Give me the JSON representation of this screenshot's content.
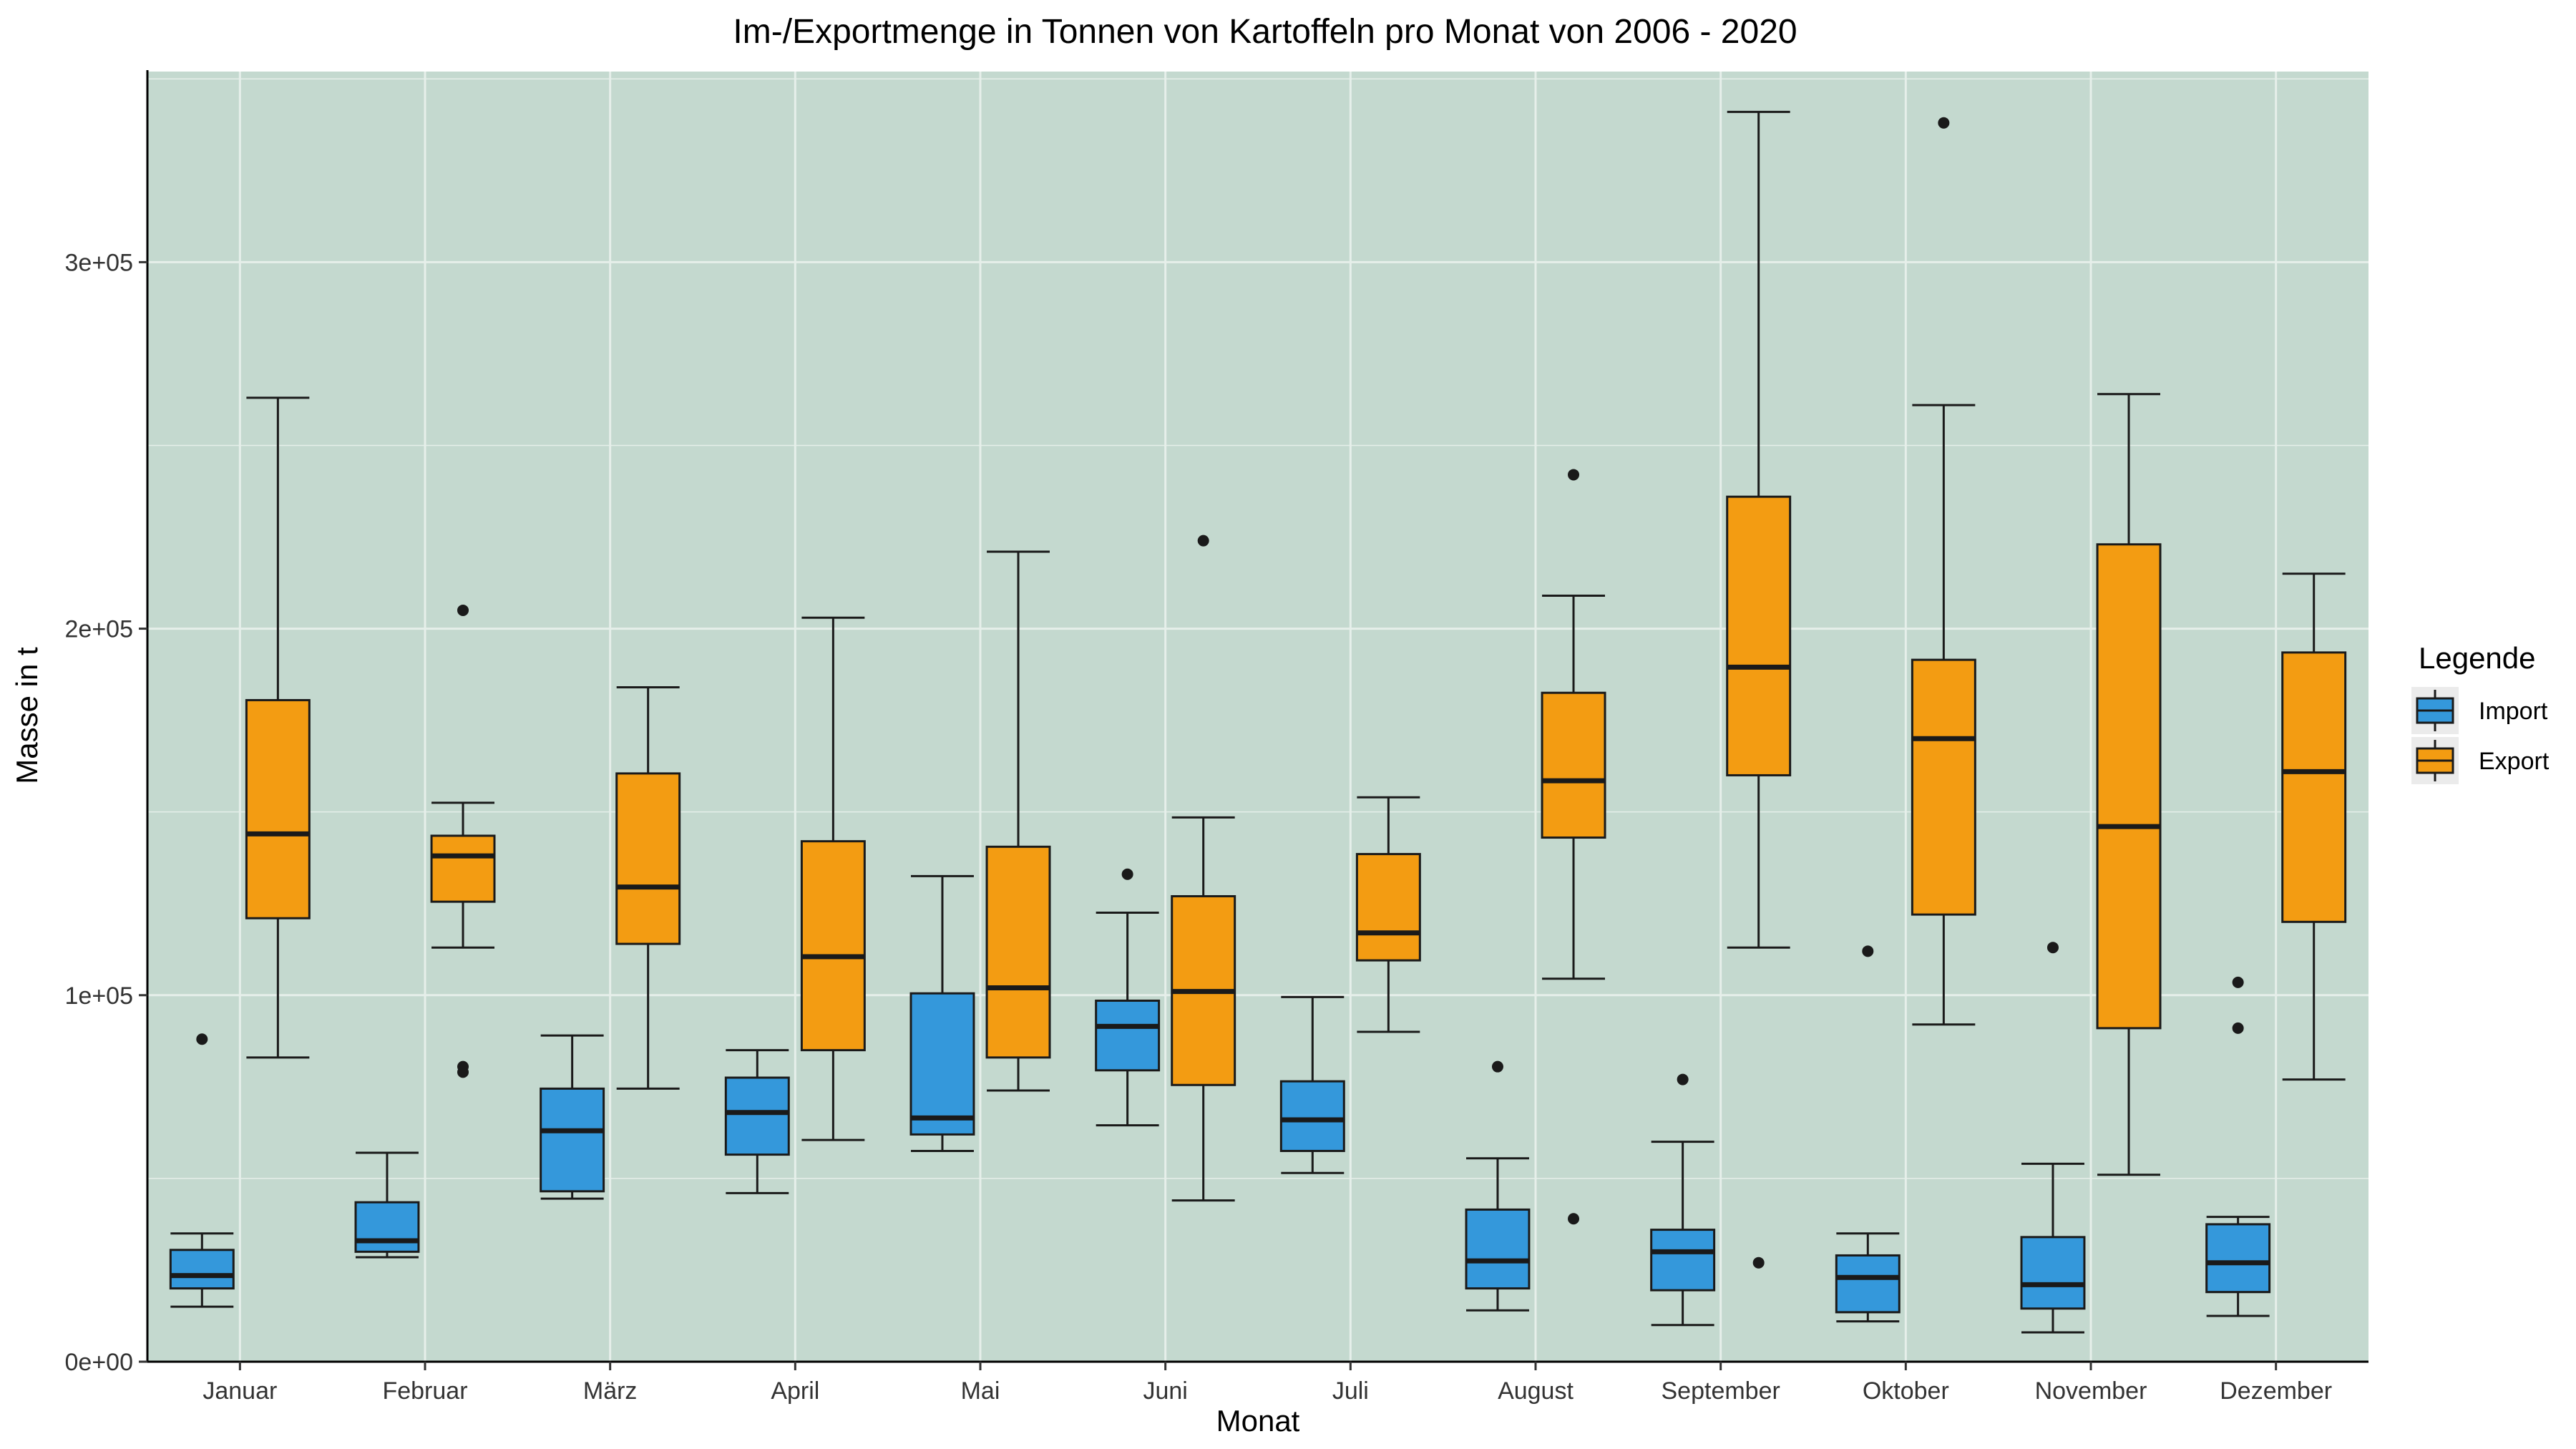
{
  "colors": {
    "panel": "#c4d9cf",
    "grid": "#e6efea",
    "import": "#3498db",
    "export": "#f39c12",
    "outline": "#1a1a1a",
    "text": "#000000",
    "tick_text": "#333333",
    "legend_key_bg": "#ebebeb"
  },
  "chart_data": {
    "type": "box",
    "title": "Im-/Exportmenge in Tonnen von Kartoffeln pro Monat von 2006 - 2020",
    "xlabel": "Monat",
    "ylabel": "Masse in t",
    "ylim": [
      0,
      352000
    ],
    "yticks": [
      0,
      100000,
      200000,
      300000
    ],
    "ytick_labels": [
      "0e+00",
      "1e+05",
      "2e+05",
      "3e+05"
    ],
    "grid": true,
    "legend": {
      "title": "Legende",
      "position": "right",
      "entries": [
        "Import",
        "Export"
      ]
    },
    "categories": [
      "Januar",
      "Februar",
      "März",
      "April",
      "Mai",
      "Juni",
      "Juli",
      "August",
      "September",
      "Oktober",
      "November",
      "Dezember"
    ],
    "series": [
      {
        "name": "Import",
        "boxes": [
          {
            "whisker_low": 15000,
            "q1": 20000,
            "median": 23500,
            "q3": 30500,
            "whisker_high": 35000,
            "outliers": [
              88000
            ]
          },
          {
            "whisker_low": 28500,
            "q1": 30000,
            "median": 33000,
            "q3": 43500,
            "whisker_high": 57000,
            "outliers": []
          },
          {
            "whisker_low": 44500,
            "q1": 46500,
            "median": 63000,
            "q3": 74500,
            "whisker_high": 89000,
            "outliers": []
          },
          {
            "whisker_low": 46000,
            "q1": 56500,
            "median": 68000,
            "q3": 77500,
            "whisker_high": 85000,
            "outliers": []
          },
          {
            "whisker_low": 57500,
            "q1": 62000,
            "median": 66500,
            "q3": 100500,
            "whisker_high": 132500,
            "outliers": []
          },
          {
            "whisker_low": 64500,
            "q1": 79500,
            "median": 91500,
            "q3": 98500,
            "whisker_high": 122500,
            "outliers": [
              133000
            ]
          },
          {
            "whisker_low": 51500,
            "q1": 57500,
            "median": 66000,
            "q3": 76500,
            "whisker_high": 99500,
            "outliers": []
          },
          {
            "whisker_low": 14000,
            "q1": 20000,
            "median": 27500,
            "q3": 41500,
            "whisker_high": 55500,
            "outliers": [
              80500
            ]
          },
          {
            "whisker_low": 10000,
            "q1": 19500,
            "median": 30000,
            "q3": 36000,
            "whisker_high": 60000,
            "outliers": [
              77000
            ]
          },
          {
            "whisker_low": 11000,
            "q1": 13500,
            "median": 23000,
            "q3": 29000,
            "whisker_high": 35000,
            "outliers": [
              112000
            ]
          },
          {
            "whisker_low": 8000,
            "q1": 14500,
            "median": 21000,
            "q3": 34000,
            "whisker_high": 54000,
            "outliers": [
              113000
            ]
          },
          {
            "whisker_low": 12500,
            "q1": 19000,
            "median": 27000,
            "q3": 37500,
            "whisker_high": 39500,
            "outliers": [
              91000,
              103500
            ]
          }
        ]
      },
      {
        "name": "Export",
        "boxes": [
          {
            "whisker_low": 83000,
            "q1": 121000,
            "median": 144000,
            "q3": 180500,
            "whisker_high": 263000,
            "outliers": []
          },
          {
            "whisker_low": 113000,
            "q1": 125500,
            "median": 138000,
            "q3": 143500,
            "whisker_high": 152500,
            "outliers": [
              79000,
              80500,
              205000
            ]
          },
          {
            "whisker_low": 74500,
            "q1": 114000,
            "median": 129500,
            "q3": 160500,
            "whisker_high": 184000,
            "outliers": []
          },
          {
            "whisker_low": 60500,
            "q1": 85000,
            "median": 110500,
            "q3": 142000,
            "whisker_high": 203000,
            "outliers": []
          },
          {
            "whisker_low": 74000,
            "q1": 83000,
            "median": 102000,
            "q3": 140500,
            "whisker_high": 221000,
            "outliers": []
          },
          {
            "whisker_low": 44000,
            "q1": 75500,
            "median": 101000,
            "q3": 127000,
            "whisker_high": 148500,
            "outliers": [
              224000
            ]
          },
          {
            "whisker_low": 90000,
            "q1": 109500,
            "median": 117000,
            "q3": 138500,
            "whisker_high": 154000,
            "outliers": []
          },
          {
            "whisker_low": 104500,
            "q1": 143000,
            "median": 158500,
            "q3": 182500,
            "whisker_high": 209000,
            "outliers": [
              39000,
              242000
            ]
          },
          {
            "whisker_low": 113000,
            "q1": 160000,
            "median": 189500,
            "q3": 236000,
            "whisker_high": 341000,
            "outliers": [
              27000
            ]
          },
          {
            "whisker_low": 92000,
            "q1": 122000,
            "median": 170000,
            "q3": 191500,
            "whisker_high": 261000,
            "outliers": [
              338000
            ]
          },
          {
            "whisker_low": 51000,
            "q1": 91000,
            "median": 146000,
            "q3": 223000,
            "whisker_high": 264000,
            "outliers": []
          },
          {
            "whisker_low": 77000,
            "q1": 120000,
            "median": 161000,
            "q3": 193500,
            "whisker_high": 215000,
            "outliers": []
          }
        ]
      }
    ]
  }
}
